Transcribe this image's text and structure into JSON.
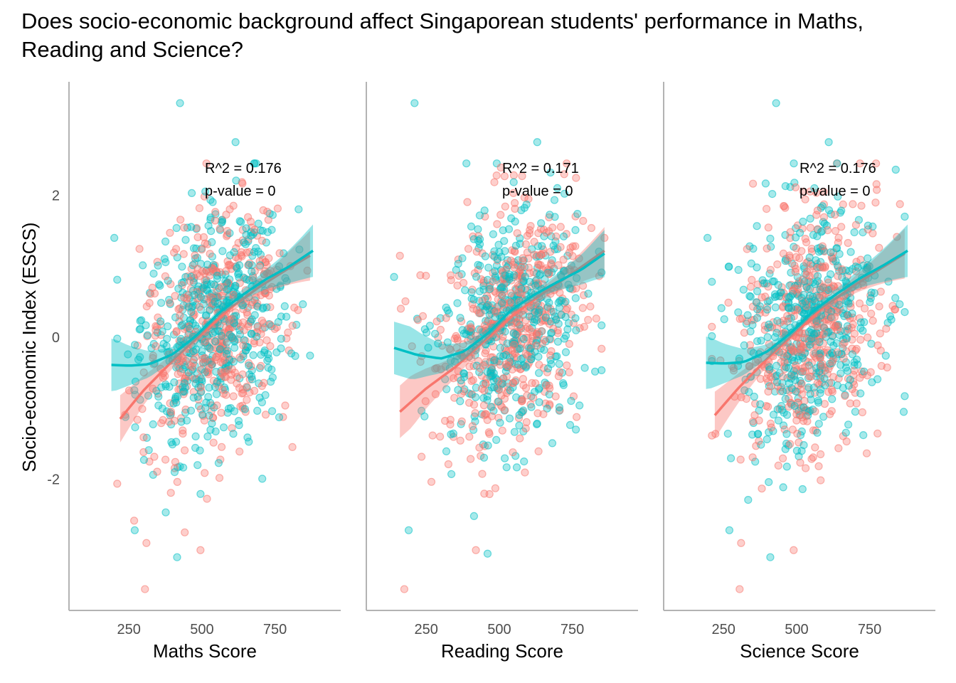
{
  "title": "Does socio-economic background affect Singaporean students' performance in Maths, Reading and Science?",
  "colors": {
    "group_a": "#F8766D",
    "group_b": "#00BFC4",
    "axis": "#b3b3b3",
    "tick_text": "#4d4d4d"
  },
  "y_axis": {
    "label": "Socio-economic Index (ESCS)",
    "ticks": [
      2,
      0,
      -2
    ],
    "tick_labels": [
      "2",
      "0",
      "-2"
    ]
  },
  "chart_data": [
    {
      "type": "scatter",
      "subject": "Maths",
      "xlabel": "Maths Score",
      "ylabel": "Socio-economic Index (ESCS)",
      "xlim": [
        45,
        975
      ],
      "ylim": [
        -3.85,
        3.6
      ],
      "x_ticks": [
        250,
        500,
        750
      ],
      "x_tick_labels": [
        "250",
        "500",
        "750"
      ],
      "annotation": {
        "r2": "R^2 =  0.176",
        "pvalue": "p-value =  0"
      },
      "x_range": [
        190,
        880
      ],
      "smooth": [
        {
          "x": [
            220,
            300,
            400,
            500,
            600,
            700,
            800,
            870
          ],
          "y": [
            -1.15,
            -0.75,
            -0.33,
            0.05,
            0.42,
            0.72,
            0.98,
            1.15
          ]
        },
        {
          "x": [
            190,
            250,
            320,
            400,
            480,
            560,
            640,
            720,
            800,
            880
          ],
          "y": [
            -0.39,
            -0.4,
            -0.38,
            -0.24,
            0.02,
            0.35,
            0.6,
            0.82,
            1.0,
            1.22
          ]
        }
      ],
      "outliers": [
        {
          "x": 425,
          "y": 3.3,
          "group": "b"
        },
        {
          "x": 615,
          "y": 2.75,
          "group": "b"
        },
        {
          "x": 200,
          "y": 1.4,
          "group": "b"
        },
        {
          "x": 305,
          "y": -3.55,
          "group": "a"
        },
        {
          "x": 415,
          "y": -3.1,
          "group": "b"
        },
        {
          "x": 495,
          "y": -3.0,
          "group": "a"
        },
        {
          "x": 270,
          "y": -2.72,
          "group": "b"
        },
        {
          "x": 310,
          "y": -2.9,
          "group": "a"
        }
      ]
    },
    {
      "type": "scatter",
      "subject": "Reading",
      "xlabel": "Reading Score",
      "ylabel": "Socio-economic Index (ESCS)",
      "xlim": [
        45,
        975
      ],
      "ylim": [
        -3.85,
        3.6
      ],
      "x_ticks": [
        250,
        500,
        750
      ],
      "x_tick_labels": [
        "250",
        "500",
        "750"
      ],
      "annotation": {
        "r2": "R^2 =  0.171",
        "pvalue": "p-value =  0"
      },
      "x_range": [
        140,
        860
      ],
      "smooth": [
        {
          "x": [
            160,
            250,
            350,
            450,
            550,
            650,
            750,
            860
          ],
          "y": [
            -1.05,
            -0.72,
            -0.42,
            -0.05,
            0.32,
            0.62,
            0.9,
            1.22
          ]
        },
        {
          "x": [
            140,
            220,
            300,
            380,
            460,
            540,
            620,
            700,
            780,
            860
          ],
          "y": [
            -0.15,
            -0.25,
            -0.3,
            -0.2,
            0.05,
            0.38,
            0.6,
            0.78,
            0.95,
            1.18
          ]
        }
      ],
      "outliers": [
        {
          "x": 210,
          "y": 3.3,
          "group": "b"
        },
        {
          "x": 630,
          "y": 2.75,
          "group": "b"
        },
        {
          "x": 140,
          "y": 0.85,
          "group": "b"
        },
        {
          "x": 175,
          "y": -3.55,
          "group": "a"
        },
        {
          "x": 460,
          "y": -3.05,
          "group": "b"
        },
        {
          "x": 190,
          "y": -2.72,
          "group": "b"
        },
        {
          "x": 420,
          "y": -3.0,
          "group": "a"
        },
        {
          "x": 860,
          "y": 1.4,
          "group": "a"
        }
      ]
    },
    {
      "type": "scatter",
      "subject": "Science",
      "xlabel": "Science Score",
      "ylabel": "Socio-economic Index (ESCS)",
      "xlim": [
        45,
        975
      ],
      "ylim": [
        -3.85,
        3.6
      ],
      "x_ticks": [
        250,
        500,
        750
      ],
      "x_tick_labels": [
        "250",
        "500",
        "750"
      ],
      "annotation": {
        "r2": "R^2 =  0.176",
        "pvalue": "p-value =  0"
      },
      "x_range": [
        190,
        880
      ],
      "smooth": [
        {
          "x": [
            220,
            300,
            400,
            500,
            600,
            700,
            800,
            870
          ],
          "y": [
            -1.1,
            -0.72,
            -0.3,
            0.08,
            0.45,
            0.74,
            1.0,
            1.18
          ]
        },
        {
          "x": [
            190,
            250,
            320,
            400,
            480,
            560,
            640,
            720,
            800,
            880
          ],
          "y": [
            -0.36,
            -0.37,
            -0.35,
            -0.2,
            0.06,
            0.38,
            0.62,
            0.84,
            1.02,
            1.22
          ]
        }
      ],
      "outliers": [
        {
          "x": 430,
          "y": 3.3,
          "group": "b"
        },
        {
          "x": 610,
          "y": 2.75,
          "group": "b"
        },
        {
          "x": 195,
          "y": 1.4,
          "group": "b"
        },
        {
          "x": 305,
          "y": -3.55,
          "group": "a"
        },
        {
          "x": 410,
          "y": -3.1,
          "group": "b"
        },
        {
          "x": 490,
          "y": -3.0,
          "group": "a"
        },
        {
          "x": 270,
          "y": -2.72,
          "group": "b"
        },
        {
          "x": 310,
          "y": -2.9,
          "group": "a"
        }
      ]
    }
  ]
}
